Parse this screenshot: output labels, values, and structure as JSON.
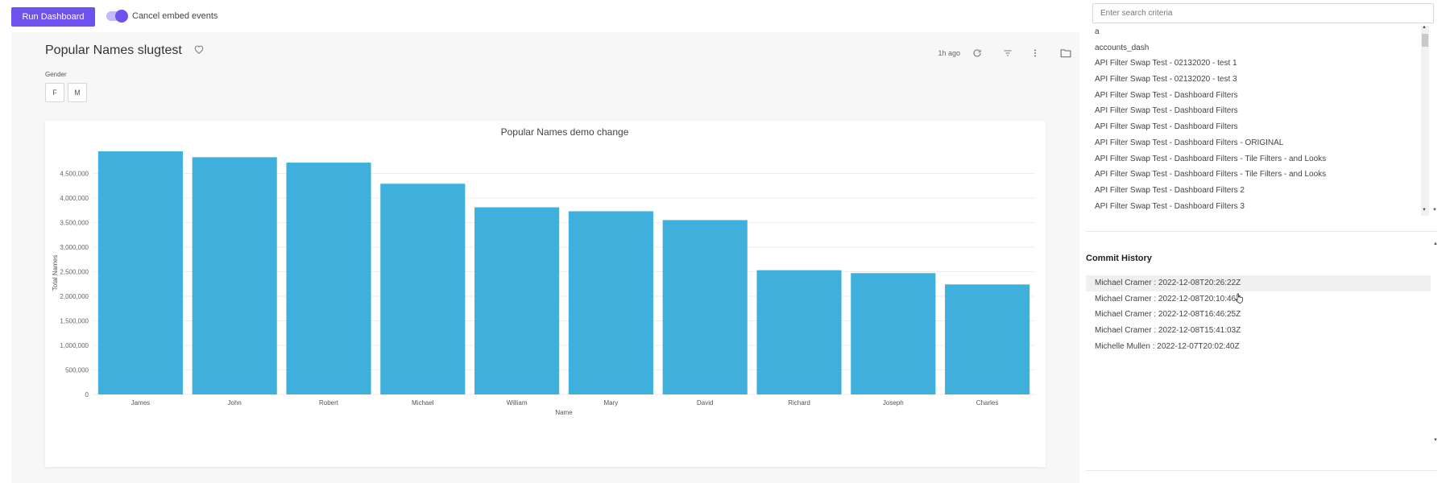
{
  "toolbar": {
    "run_label": "Run Dashboard",
    "toggle_label": "Cancel embed events",
    "toggle_on": true
  },
  "dashboard": {
    "title": "Popular Names slugtest",
    "updated": "1h ago",
    "filter_label": "Gender",
    "filter_options": [
      "F",
      "M"
    ],
    "icons": [
      "heart-icon",
      "refresh-icon",
      "filter-icon",
      "more-icon",
      "folder-icon"
    ]
  },
  "chart_data": {
    "type": "bar",
    "title": "Popular Names demo change",
    "xlabel": "Name",
    "ylabel": "Total Names",
    "categories": [
      "James",
      "John",
      "Robert",
      "Michael",
      "William",
      "Mary",
      "David",
      "Richard",
      "Joseph",
      "Charles"
    ],
    "values": [
      4950000,
      4830000,
      4720000,
      4290000,
      3810000,
      3730000,
      3550000,
      2530000,
      2470000,
      2240000
    ],
    "yticks": [
      "0",
      "500,000",
      "1,000,000",
      "1,500,000",
      "2,000,000",
      "2,500,000",
      "3,000,000",
      "3,500,000",
      "4,000,000",
      "4,500,000"
    ],
    "ylim": [
      0,
      4950000
    ],
    "grid": true,
    "color": "#3fb0dc"
  },
  "sidebar": {
    "search_placeholder": "Enter search criteria",
    "items": [
      "a",
      "accounts_dash",
      "API Filter Swap Test - 02132020 - test 1",
      "API Filter Swap Test - 02132020 - test 3",
      "API Filter Swap Test - Dashboard Filters",
      "API Filter Swap Test - Dashboard Filters",
      "API Filter Swap Test - Dashboard Filters",
      "API Filter Swap Test - Dashboard Filters - ORIGINAL",
      "API Filter Swap Test - Dashboard Filters - Tile Filters - and Looks",
      "API Filter Swap Test - Dashboard Filters - Tile Filters - and Looks",
      "API Filter Swap Test - Dashboard Filters 2",
      "API Filter Swap Test - Dashboard Filters 3"
    ]
  },
  "commit_history": {
    "title": "Commit History",
    "items": [
      "Michael Cramer : 2022-12-08T20:26:22Z",
      "Michael Cramer : 2022-12-08T20:10:46Z",
      "Michael Cramer : 2022-12-08T16:46:25Z",
      "Michael Cramer : 2022-12-08T15:41:03Z",
      "Michelle Mullen : 2022-12-07T20:02:40Z"
    ],
    "selected_index": 0
  }
}
